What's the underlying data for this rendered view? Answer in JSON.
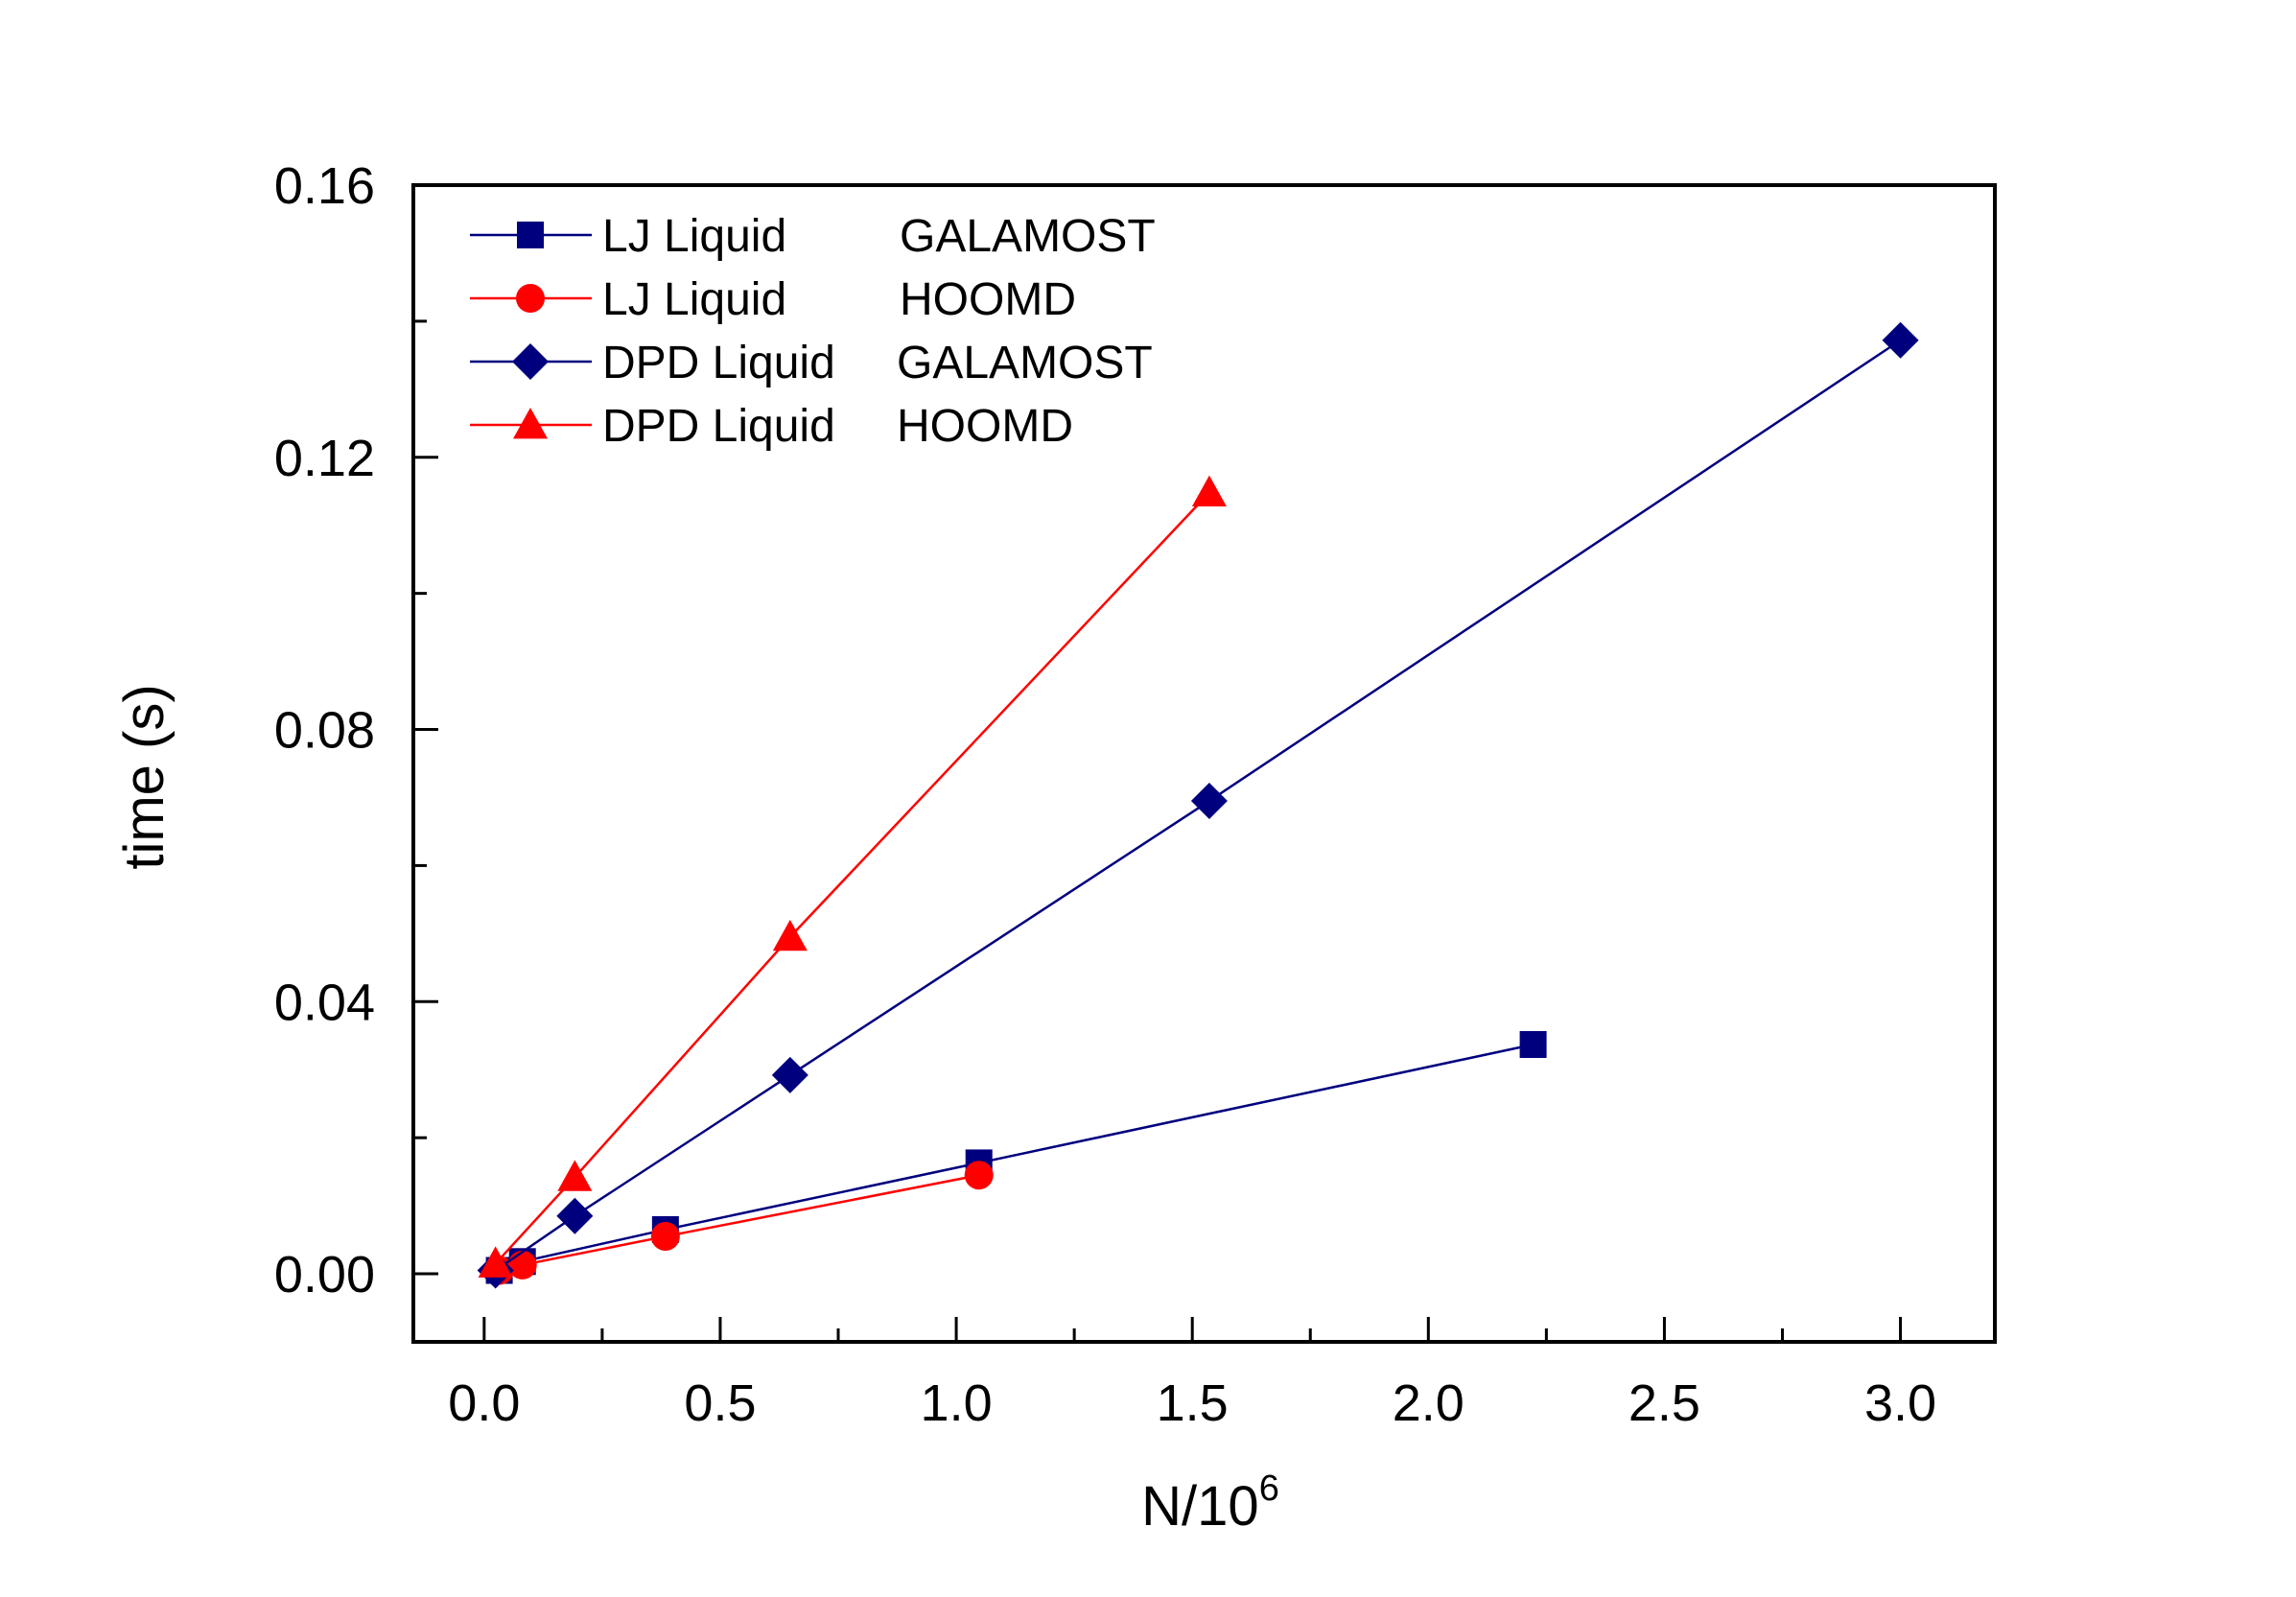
{
  "chart_data": {
    "type": "line",
    "xlabel": "N/10",
    "xlabel_sup": "6",
    "ylabel": "time (s)",
    "xlim": [
      -0.15,
      3.2
    ],
    "ylim": [
      -0.01,
      0.16
    ],
    "x_ticks": [
      "0.0",
      "0.5",
      "1.0",
      "1.5",
      "2.0",
      "2.5",
      "3.0"
    ],
    "y_ticks": [
      "0.00",
      "0.04",
      "0.08",
      "0.12",
      "0.16"
    ],
    "legend_position": "top-left",
    "grid": false,
    "series": [
      {
        "name": "LJ Liquid",
        "code": "GALAMOST",
        "color": "#00007f",
        "marker": "square",
        "x": [
          0.032,
          0.081,
          0.384,
          1.048,
          2.222
        ],
        "y": [
          0.0005,
          0.0018,
          0.0065,
          0.0163,
          0.0337
        ]
      },
      {
        "name": "LJ Liquid",
        "code": "HOOMD",
        "color": "#ff0000",
        "marker": "circle",
        "x": [
          0.032,
          0.081,
          0.384,
          1.048
        ],
        "y": [
          0.0005,
          0.0013,
          0.0055,
          0.0145
        ]
      },
      {
        "name": "DPD Liquid",
        "code": "GALAMOST",
        "color": "#00007f",
        "marker": "diamond",
        "x": [
          0.024,
          0.192,
          0.648,
          1.536,
          3.0
        ],
        "y": [
          0.0005,
          0.0085,
          0.0292,
          0.0695,
          0.1372
        ]
      },
      {
        "name": "DPD Liquid",
        "code": "HOOMD",
        "color": "#ff0000",
        "marker": "triangle",
        "x": [
          0.024,
          0.192,
          0.648,
          1.536
        ],
        "y": [
          0.0015,
          0.0142,
          0.0495,
          0.1148
        ]
      }
    ]
  }
}
